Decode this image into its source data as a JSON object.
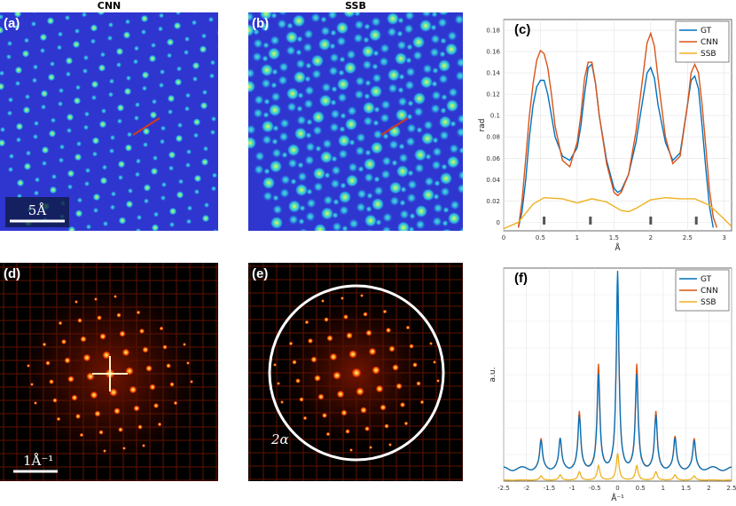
{
  "column_titles": {
    "cnn": "CNN",
    "ssb": "SSB"
  },
  "panel_labels": {
    "a": "(a)",
    "b": "(b)",
    "c": "(c)",
    "d": "(d)",
    "e": "(e)",
    "f": "(f)"
  },
  "annotations": {
    "real_scale": "5Å",
    "recip_scale": "1Å⁻¹",
    "aperture_label": "2α"
  },
  "colors": {
    "GT": "#0072bd",
    "CNN": "#d95319",
    "SSB": "#edb120",
    "lattice_bg": "#2f36cf",
    "fft_bg": "#000000"
  },
  "chart_data": [
    {
      "id": "c",
      "type": "line",
      "xlabel": "Å",
      "ylabel": "rad",
      "xlim": [
        0,
        3.1
      ],
      "ylim": [
        -0.008,
        0.19
      ],
      "xticks": [
        0,
        0.5,
        1,
        1.5,
        2,
        2.5,
        3
      ],
      "yticks": [
        0,
        0.02,
        0.04,
        0.06,
        0.08,
        0.1,
        0.12,
        0.14,
        0.16,
        0.18
      ],
      "legend": [
        "GT",
        "CNN",
        "SSB"
      ],
      "legend_position": "top-right",
      "atom_markers": [
        0.55,
        1.18,
        2.0,
        2.62
      ],
      "series": [
        {
          "name": "GT",
          "x": [
            0.2,
            0.25,
            0.3,
            0.35,
            0.4,
            0.45,
            0.5,
            0.55,
            0.6,
            0.65,
            0.7,
            0.8,
            0.9,
            1.0,
            1.05,
            1.1,
            1.15,
            1.2,
            1.25,
            1.3,
            1.4,
            1.5,
            1.55,
            1.6,
            1.7,
            1.8,
            1.9,
            1.95,
            2.0,
            2.05,
            2.1,
            2.2,
            2.3,
            2.4,
            2.5,
            2.55,
            2.6,
            2.65,
            2.7,
            2.75,
            2.8,
            2.85
          ],
          "y": [
            -0.005,
            0.01,
            0.04,
            0.08,
            0.11,
            0.127,
            0.133,
            0.133,
            0.12,
            0.1,
            0.08,
            0.062,
            0.058,
            0.07,
            0.09,
            0.12,
            0.145,
            0.148,
            0.13,
            0.1,
            0.058,
            0.032,
            0.028,
            0.03,
            0.045,
            0.075,
            0.118,
            0.14,
            0.145,
            0.135,
            0.11,
            0.075,
            0.058,
            0.065,
            0.11,
            0.133,
            0.137,
            0.125,
            0.09,
            0.05,
            0.015,
            -0.005
          ]
        },
        {
          "name": "CNN",
          "x": [
            0.2,
            0.25,
            0.3,
            0.35,
            0.4,
            0.45,
            0.5,
            0.55,
            0.6,
            0.65,
            0.7,
            0.8,
            0.9,
            1.0,
            1.05,
            1.1,
            1.15,
            1.2,
            1.25,
            1.3,
            1.4,
            1.5,
            1.55,
            1.6,
            1.7,
            1.8,
            1.9,
            1.95,
            2.0,
            2.05,
            2.1,
            2.2,
            2.3,
            2.4,
            2.5,
            2.55,
            2.6,
            2.65,
            2.7,
            2.75,
            2.8,
            2.85,
            2.9
          ],
          "y": [
            -0.005,
            0.02,
            0.06,
            0.1,
            0.13,
            0.152,
            0.161,
            0.158,
            0.145,
            0.12,
            0.09,
            0.058,
            0.052,
            0.075,
            0.1,
            0.135,
            0.15,
            0.15,
            0.13,
            0.1,
            0.055,
            0.028,
            0.025,
            0.028,
            0.045,
            0.085,
            0.14,
            0.168,
            0.177,
            0.165,
            0.135,
            0.08,
            0.055,
            0.062,
            0.11,
            0.14,
            0.148,
            0.14,
            0.11,
            0.07,
            0.03,
            0.005,
            -0.005
          ]
        },
        {
          "name": "SSB",
          "x": [
            0,
            0.2,
            0.4,
            0.55,
            0.8,
            1.0,
            1.2,
            1.4,
            1.6,
            1.7,
            1.8,
            2.0,
            2.2,
            2.4,
            2.6,
            2.8,
            3.0,
            3.1
          ],
          "y": [
            -0.006,
            0.0,
            0.017,
            0.023,
            0.022,
            0.018,
            0.022,
            0.019,
            0.011,
            0.01,
            0.013,
            0.021,
            0.023,
            0.022,
            0.022,
            0.016,
            0.003,
            -0.004
          ]
        }
      ]
    },
    {
      "id": "f",
      "type": "line",
      "xlabel": "Å⁻¹",
      "ylabel": "a.u.",
      "xlim": [
        -2.5,
        2.5
      ],
      "ylim": [
        0,
        1.05
      ],
      "xticks": [
        -2.5,
        -2,
        -1.5,
        -1,
        -0.5,
        0,
        0.5,
        1,
        1.5,
        2,
        2.5
      ],
      "legend": [
        "GT",
        "CNN",
        "SSB"
      ],
      "legend_position": "top-right",
      "peaks_x": [
        -1.68,
        -1.26,
        -0.84,
        -0.42,
        0,
        0.42,
        0.84,
        1.26,
        1.68
      ],
      "series": [
        {
          "name": "GT",
          "baseline": 0.06,
          "peaks": [
            0.13,
            0.14,
            0.25,
            0.45,
            0.96,
            0.45,
            0.25,
            0.14,
            0.13
          ]
        },
        {
          "name": "CNN",
          "baseline": 0.06,
          "peaks": [
            0.14,
            0.14,
            0.27,
            0.5,
            0.9,
            0.5,
            0.27,
            0.15,
            0.14
          ]
        },
        {
          "name": "SSB",
          "baseline": 0.005,
          "peaks": [
            0.02,
            0.025,
            0.04,
            0.07,
            0.13,
            0.07,
            0.04,
            0.025,
            0.02
          ]
        }
      ]
    }
  ]
}
